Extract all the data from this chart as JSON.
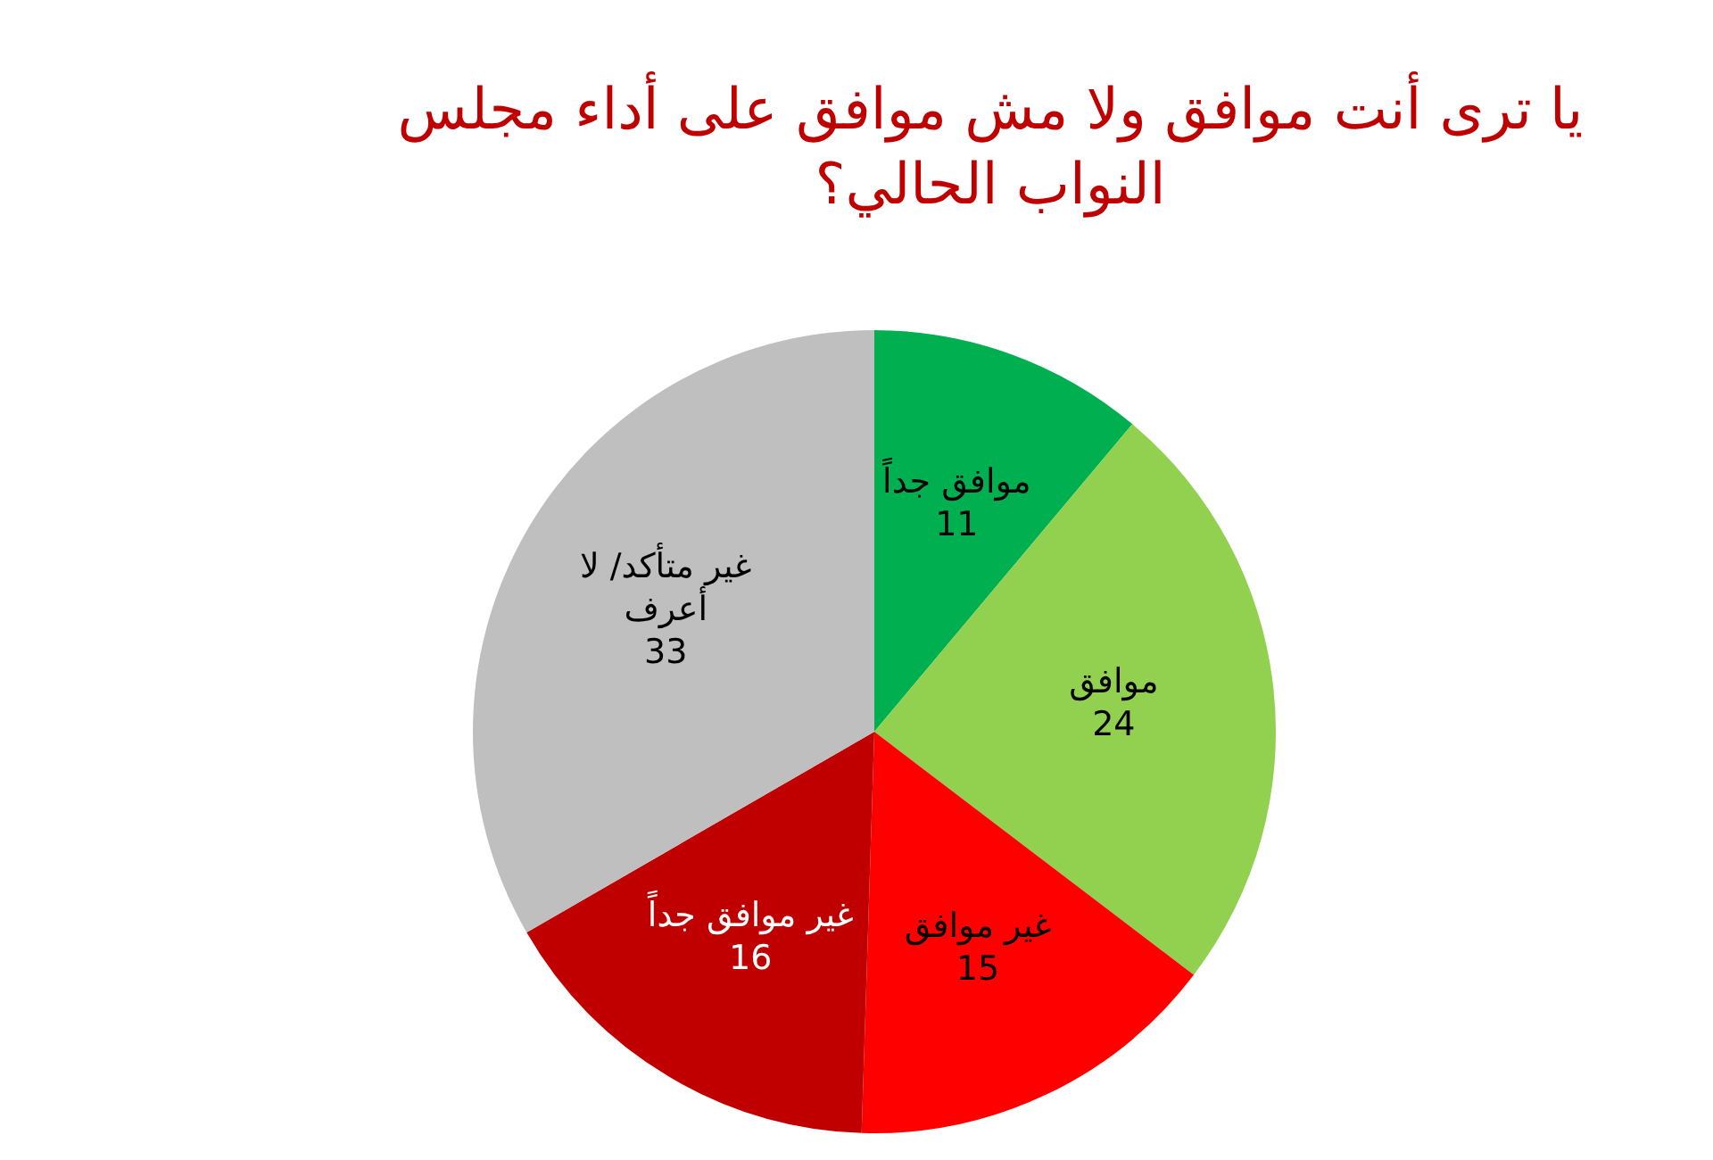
{
  "chart_data": {
    "type": "pie",
    "title": "يا ترى أنت موافق ولا مش موافق على أداء مجلس النواب الحالي؟",
    "categories": [
      "موافق جداً",
      "موافق",
      "غير موافق",
      "غير موافق جداً",
      "غير متأكد/ لا أعرف"
    ],
    "values": [
      11,
      24,
      15,
      16,
      33
    ],
    "colors": [
      "#00b050",
      "#92d050",
      "#ff0000",
      "#c00000",
      "#bfbfbf"
    ],
    "data_labels": true,
    "legend": false
  }
}
